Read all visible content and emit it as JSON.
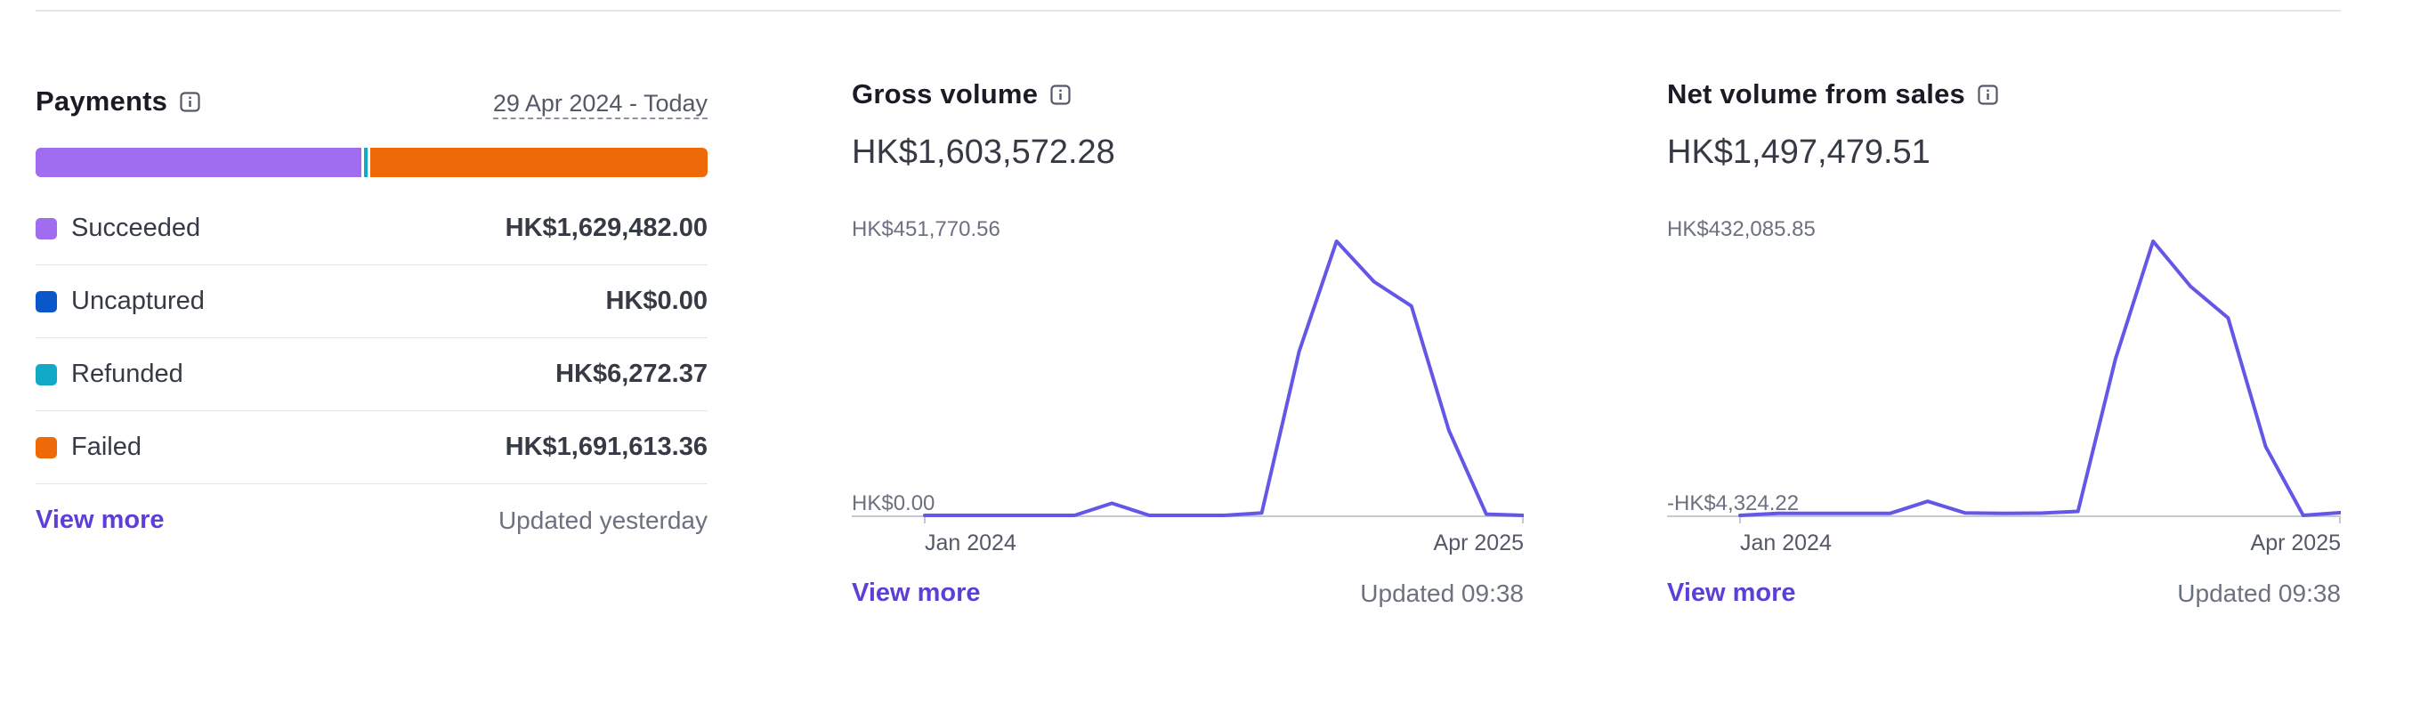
{
  "colors": {
    "succeeded": "#a06cf0",
    "uncaptured": "#0a57c9",
    "refunded": "#12a8c8",
    "failed": "#ee6a08",
    "accent": "#5b3fd6",
    "line": "#6456e6",
    "axis": "#c6c9d1"
  },
  "payments": {
    "title": "Payments",
    "date_range": "29 Apr 2024 - Today",
    "statuses": [
      {
        "key": "succeeded",
        "label": "Succeeded",
        "value": "HK$1,629,482.00",
        "amount": 1629482.0
      },
      {
        "key": "uncaptured",
        "label": "Uncaptured",
        "value": "HK$0.00",
        "amount": 0
      },
      {
        "key": "refunded",
        "label": "Refunded",
        "value": "HK$6,272.37",
        "amount": 6272.37
      },
      {
        "key": "failed",
        "label": "Failed",
        "value": "HK$1,691,613.36",
        "amount": 1691613.36
      }
    ],
    "view_more": "View more",
    "updated": "Updated yesterday"
  },
  "gross_volume": {
    "title": "Gross volume",
    "amount": "HK$1,603,572.28",
    "view_more": "View more",
    "updated": "Updated 09:38",
    "chart_data": {
      "type": "line",
      "y_max_label": "HK$451,770.56",
      "y_min_label": "HK$0.00",
      "x_start_label": "Jan 2024",
      "x_end_label": "Apr 2025",
      "ylim": [
        0,
        451770.56
      ],
      "series": [
        {
          "values": [
            0,
            0,
            0,
            0,
            0,
            20000,
            0,
            0,
            0,
            4000,
            270000,
            451770.56,
            385000,
            345000,
            140000,
            2000,
            0
          ]
        }
      ]
    }
  },
  "net_volume": {
    "title": "Net volume from sales",
    "amount": "HK$1,497,479.51",
    "view_more": "View more",
    "updated": "Updated 09:38",
    "chart_data": {
      "type": "line",
      "y_max_label": "HK$432,085.85",
      "y_min_label": "-HK$4,324.22",
      "x_start_label": "Jan 2024",
      "x_end_label": "Apr 2025",
      "ylim": [
        -4324.22,
        432085.85
      ],
      "series": [
        {
          "values": [
            -4324.22,
            -1000,
            -1000,
            -1000,
            -1000,
            18000,
            -500,
            -1000,
            -800,
            2000,
            245000,
            432085.85,
            360000,
            310000,
            105000,
            -4324.22,
            0
          ]
        }
      ]
    }
  }
}
